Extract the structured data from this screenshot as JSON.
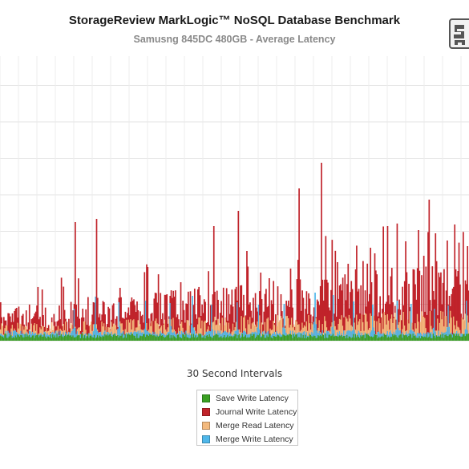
{
  "chart_data": {
    "type": "bar",
    "title": "StorageReview MarkLogic™ NoSQL Database Benchmark",
    "subtitle": "Samusng 845DC 480GB - Average Latency",
    "xlabel": "30 Second Intervals",
    "ylabel": "",
    "grid": true,
    "legend_placement": "bottom",
    "series": [
      {
        "name": "Save Write Latency",
        "color": "#3aa023"
      },
      {
        "name": "Journal Write Latency",
        "color": "#c0232a"
      },
      {
        "name": "Merge Read Latency",
        "color": "#f3b97d"
      },
      {
        "name": "Merge Write Latency",
        "color": "#4fb7ea"
      }
    ],
    "journal_peaks": [
      {
        "x": 0.1,
        "h": 48
      },
      {
        "x": 3.3,
        "h": 40
      },
      {
        "x": 9.0,
        "h": 32
      },
      {
        "x": 15.5,
        "h": 38
      },
      {
        "x": 16.0,
        "h": 148
      },
      {
        "x": 20.6,
        "h": 152
      },
      {
        "x": 25.5,
        "h": 66
      },
      {
        "x": 28.1,
        "h": 54
      },
      {
        "x": 31.5,
        "h": 92
      },
      {
        "x": 35.5,
        "h": 58
      },
      {
        "x": 45.6,
        "h": 143
      },
      {
        "x": 50.8,
        "h": 162
      },
      {
        "x": 52.6,
        "h": 112
      },
      {
        "x": 55.5,
        "h": 85
      },
      {
        "x": 57.5,
        "h": 78
      },
      {
        "x": 60.0,
        "h": 58
      },
      {
        "x": 62.0,
        "h": 90
      },
      {
        "x": 63.8,
        "h": 190
      },
      {
        "x": 68.6,
        "h": 222
      },
      {
        "x": 72.0,
        "h": 98
      },
      {
        "x": 74.2,
        "h": 96
      },
      {
        "x": 75.8,
        "h": 89
      },
      {
        "x": 79.0,
        "h": 116
      },
      {
        "x": 82.6,
        "h": 143
      },
      {
        "x": 86.5,
        "h": 124
      },
      {
        "x": 89.2,
        "h": 138
      },
      {
        "x": 90.5,
        "h": 106
      },
      {
        "x": 91.6,
        "h": 176
      },
      {
        "x": 93.0,
        "h": 134
      },
      {
        "x": 95.5,
        "h": 125
      },
      {
        "x": 97.0,
        "h": 145
      },
      {
        "x": 99.7,
        "h": 118
      }
    ],
    "merge_write_peaks": [
      {
        "x": 15.8,
        "h": 40
      },
      {
        "x": 20.3,
        "h": 55
      },
      {
        "x": 25.2,
        "h": 48
      },
      {
        "x": 31.0,
        "h": 50
      },
      {
        "x": 36.3,
        "h": 47
      },
      {
        "x": 41.0,
        "h": 56
      },
      {
        "x": 45.2,
        "h": 45
      },
      {
        "x": 50.5,
        "h": 48
      },
      {
        "x": 55.1,
        "h": 45
      },
      {
        "x": 60.6,
        "h": 46
      },
      {
        "x": 67.1,
        "h": 60
      },
      {
        "x": 71.0,
        "h": 57
      },
      {
        "x": 75.5,
        "h": 49
      },
      {
        "x": 79.5,
        "h": 45
      },
      {
        "x": 84.8,
        "h": 50
      },
      {
        "x": 87.7,
        "h": 46
      },
      {
        "x": 92.6,
        "h": 40
      },
      {
        "x": 95.6,
        "h": 44
      },
      {
        "x": 99.5,
        "h": 50
      }
    ]
  }
}
